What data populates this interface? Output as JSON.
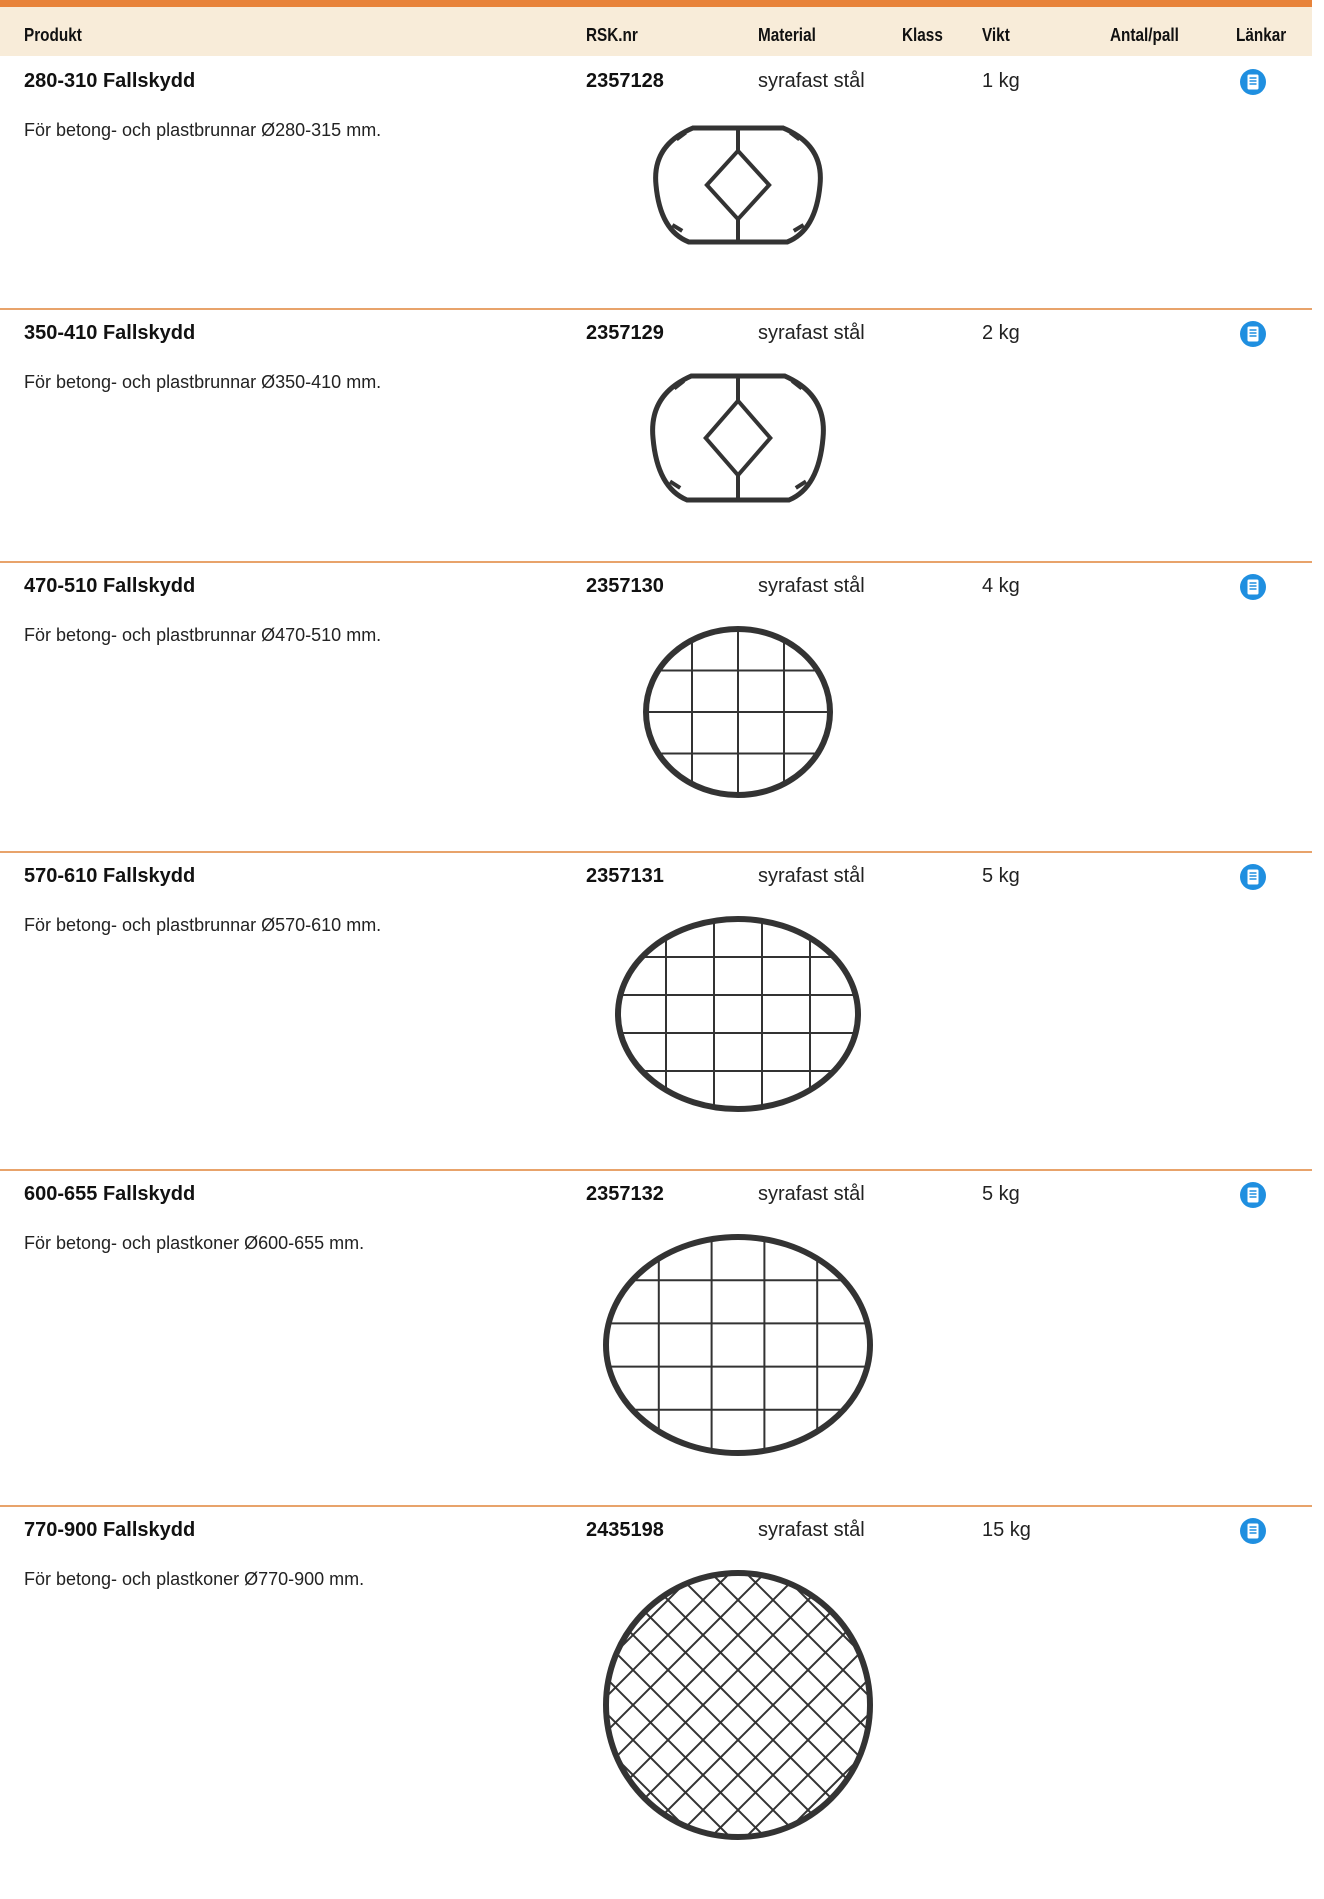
{
  "header": {
    "columns": [
      "Produkt",
      "RSK.nr",
      "Material",
      "Klass",
      "Vikt",
      "Antal/pall",
      "Länkar"
    ]
  },
  "rows": [
    {
      "name": "280-310 Fallskydd",
      "description": "För betong- och plastbrunnar Ø280-315 mm.",
      "rsk": "2357128",
      "material": "syrafast stål",
      "weight": "1 kg"
    },
    {
      "name": "350-410 Fallskydd",
      "description": "För betong- och plastbrunnar Ø350-410 mm.",
      "rsk": "2357129",
      "material": "syrafast stål",
      "weight": "2 kg"
    },
    {
      "name": "470-510 Fallskydd",
      "description": "För betong- och plastbrunnar Ø470-510 mm.",
      "rsk": "2357130",
      "material": "syrafast stål",
      "weight": "4 kg"
    },
    {
      "name": "570-610 Fallskydd",
      "description": "För betong- och plastbrunnar Ø570-610 mm.",
      "rsk": "2357131",
      "material": "syrafast stål",
      "weight": "5 kg"
    },
    {
      "name": "600-655 Fallskydd",
      "description": "För betong- och plastkoner Ø600-655 mm.",
      "rsk": "2357132",
      "material": "syrafast stål",
      "weight": "5 kg"
    },
    {
      "name": "770-900 Fallskydd",
      "description": "För betong- och plastkoner Ø770-900 mm.",
      "rsk": "2435198",
      "material": "syrafast stål",
      "weight": "15 kg"
    }
  ]
}
